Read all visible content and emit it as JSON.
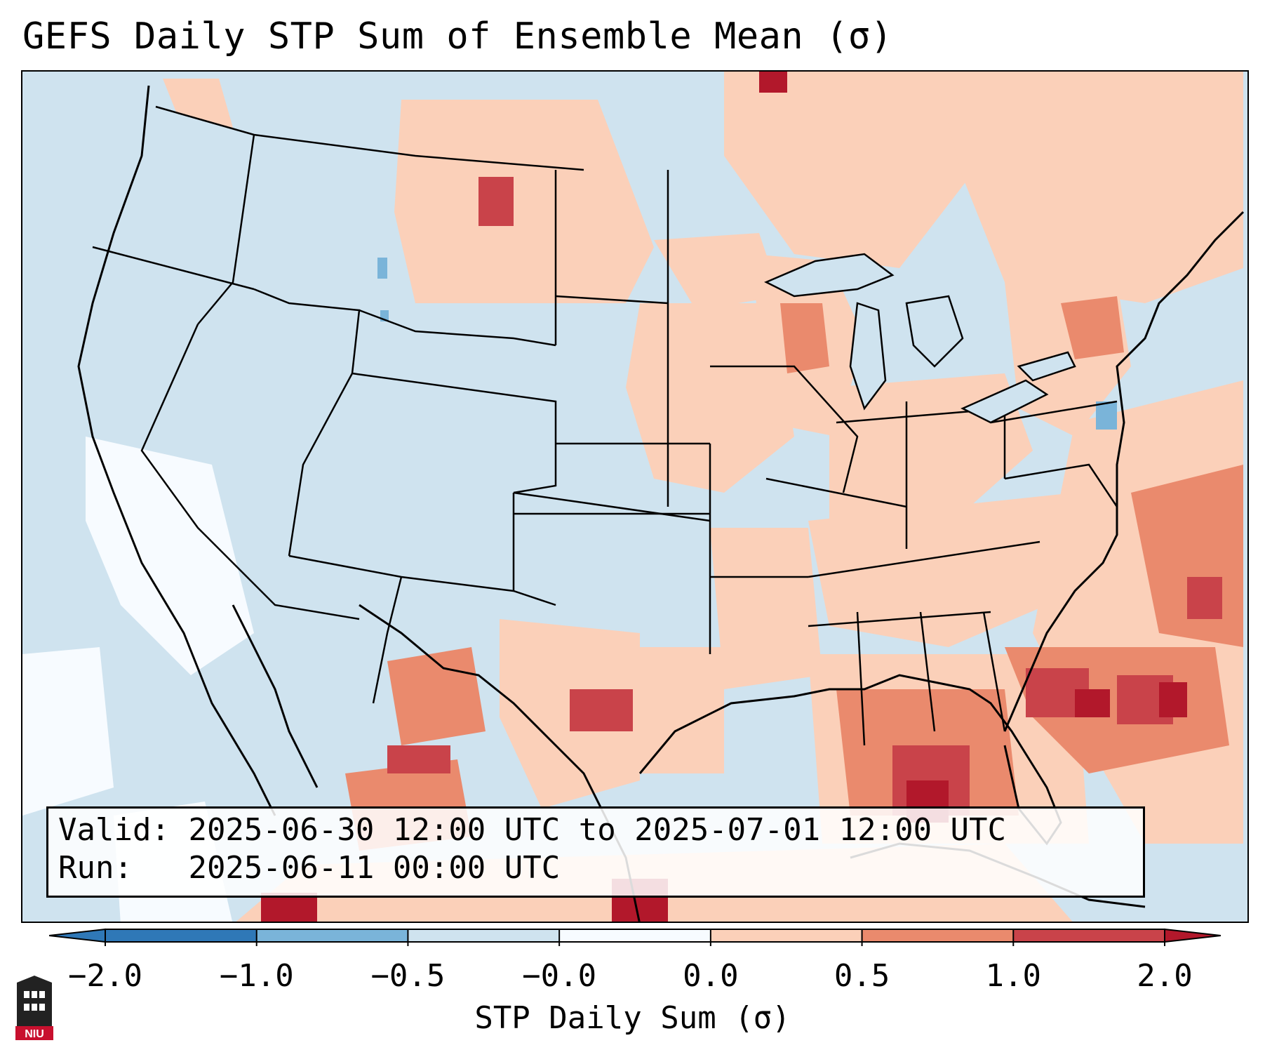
{
  "title": "GEFS Daily STP Sum of Ensemble Mean (σ)",
  "info": {
    "valid_label": "Valid:",
    "valid_value": "2025-06-30 12:00 UTC to 2025-07-01 12:00 UTC",
    "run_label": "Run:",
    "run_value": "2025-06-11 00:00 UTC"
  },
  "colorbar": {
    "title": "STP Daily Sum (σ)",
    "ticks": [
      "−2.0",
      "−1.0",
      "−0.5",
      "−0.0",
      "0.0",
      "0.5",
      "1.0",
      "2.0"
    ],
    "colors": [
      "#2f78b7",
      "#7ab4d9",
      "#cfe3ef",
      "#f7fbff",
      "#fbd0b9",
      "#ea8a6d",
      "#c9434a",
      "#b2182b"
    ]
  },
  "logo": {
    "text": "NIU"
  },
  "legend_colors": {
    "background": "#cfe3ef",
    "light_red": "#fbd0b9",
    "mid_red": "#ea8a6d",
    "dark_red": "#c9434a",
    "deep_red": "#b2182b",
    "white": "#f7fbff"
  }
}
